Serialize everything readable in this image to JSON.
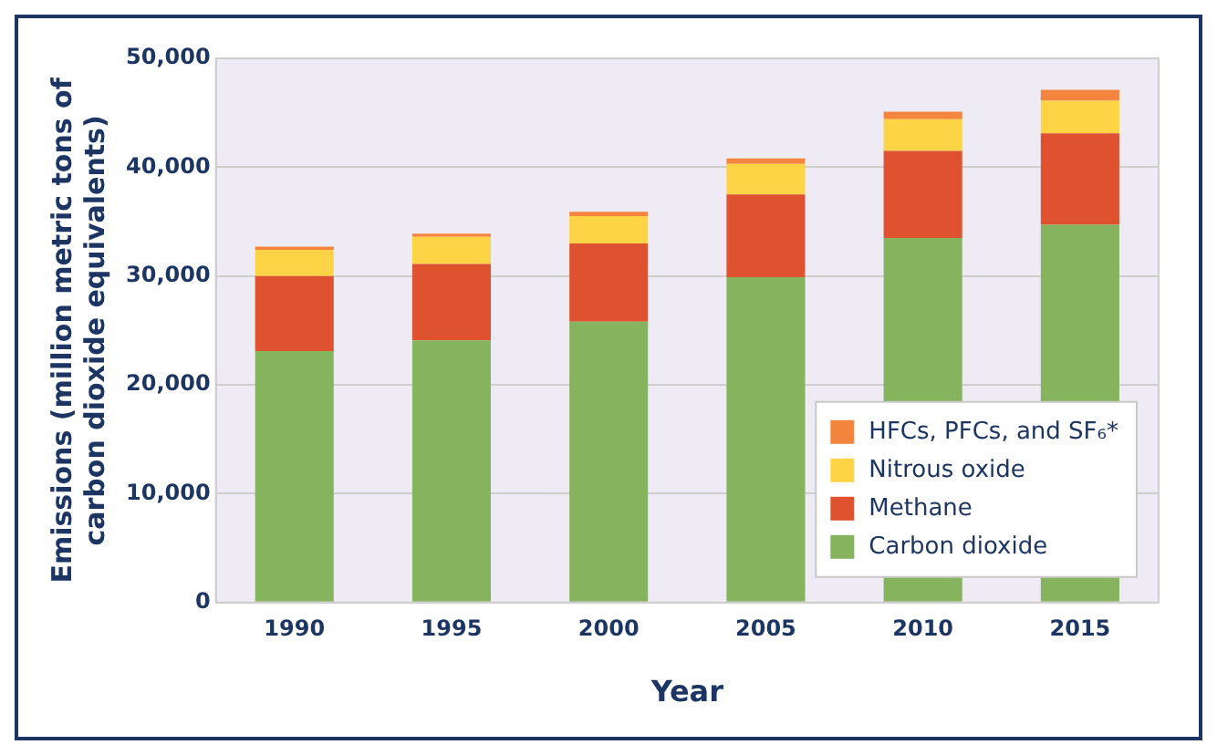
{
  "chart_data": {
    "type": "bar",
    "stacked": true,
    "xlabel": "Year",
    "ylabel": "Emissions (million metric tons of carbon dioxide equivalents)",
    "categories": [
      "1990",
      "1995",
      "2000",
      "2005",
      "2010",
      "2015"
    ],
    "series": [
      {
        "name": "Carbon dioxide",
        "color": "#86b35d",
        "values": [
          23100,
          24100,
          25800,
          29900,
          33500,
          34700
        ]
      },
      {
        "name": "Methane",
        "color": "#df522f",
        "values": [
          6900,
          7000,
          7200,
          7600,
          8000,
          8400
        ]
      },
      {
        "name": "Nitrous oxide",
        "color": "#fdd446",
        "values": [
          2400,
          2500,
          2500,
          2800,
          2900,
          3000
        ]
      },
      {
        "name": "HFCs, PFCs, and SF₆*",
        "color": "#f4853e",
        "values": [
          300,
          300,
          400,
          500,
          700,
          1000
        ]
      }
    ],
    "ylim": [
      0,
      50000
    ],
    "yticks": [
      {
        "value": 0,
        "label": "0"
      },
      {
        "value": 10000,
        "label": "10,000"
      },
      {
        "value": 20000,
        "label": "20,000"
      },
      {
        "value": 30000,
        "label": "30,000"
      },
      {
        "value": 40000,
        "label": "40,000"
      },
      {
        "value": 50000,
        "label": "50,000"
      }
    ],
    "grid": "y",
    "legend": "bottom right"
  }
}
